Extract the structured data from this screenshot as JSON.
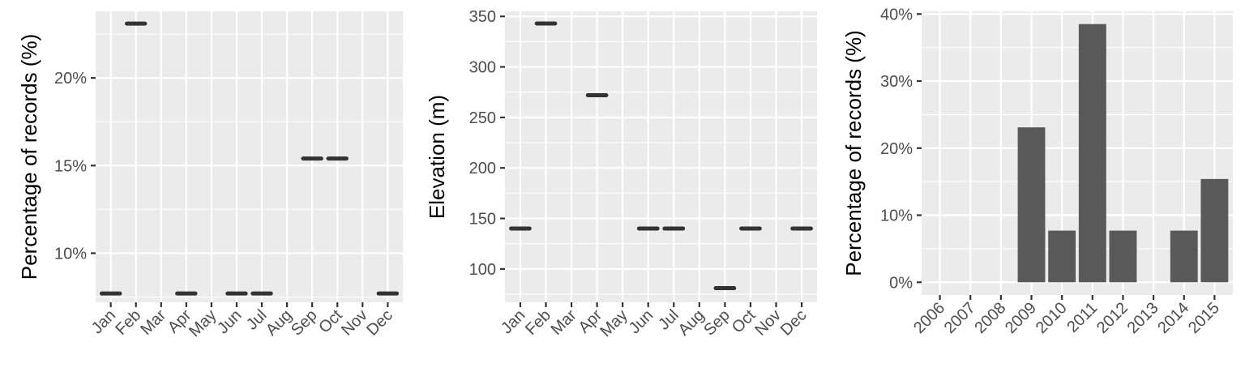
{
  "chart_data": [
    {
      "type": "scatter",
      "ylabel": "Percentage of records (%)",
      "categories": [
        "Jan",
        "Feb",
        "Mar",
        "Apr",
        "May",
        "Jun",
        "Jul",
        "Aug",
        "Sep",
        "Oct",
        "Nov",
        "Dec"
      ],
      "yticks": [
        10,
        15,
        20
      ],
      "ytick_labels": [
        "10%",
        "15%",
        "20%"
      ],
      "ylim": [
        7.2,
        23.8
      ],
      "points": [
        {
          "x": "Jan",
          "y": 7.7
        },
        {
          "x": "Feb",
          "y": 23.1
        },
        {
          "x": "Apr",
          "y": 7.7
        },
        {
          "x": "Jun",
          "y": 7.7
        },
        {
          "x": "Jul",
          "y": 7.7
        },
        {
          "x": "Sep",
          "y": 15.4
        },
        {
          "x": "Oct",
          "y": 15.4
        },
        {
          "x": "Dec",
          "y": 7.7
        }
      ],
      "grid": true
    },
    {
      "type": "scatter",
      "ylabel": "Elevation (m)",
      "categories": [
        "Jan",
        "Feb",
        "Mar",
        "Apr",
        "May",
        "Jun",
        "Jul",
        "Aug",
        "Sep",
        "Oct",
        "Nov",
        "Dec"
      ],
      "yticks": [
        100,
        150,
        200,
        250,
        300,
        350
      ],
      "ytick_labels": [
        "100",
        "150",
        "200",
        "250",
        "300",
        "350"
      ],
      "ylim": [
        67,
        355
      ],
      "points": [
        {
          "x": "Jan",
          "y": 140
        },
        {
          "x": "Feb",
          "y": 343
        },
        {
          "x": "Apr",
          "y": 272
        },
        {
          "x": "Jun",
          "y": 140
        },
        {
          "x": "Jul",
          "y": 140
        },
        {
          "x": "Sep",
          "y": 81
        },
        {
          "x": "Oct",
          "y": 140
        },
        {
          "x": "Dec",
          "y": 140
        }
      ],
      "grid": true
    },
    {
      "type": "bar",
      "ylabel": "Percentage of records (%)",
      "categories": [
        "2006",
        "2007",
        "2008",
        "2009",
        "2010",
        "2011",
        "2012",
        "2013",
        "2014",
        "2015"
      ],
      "values": [
        0,
        0,
        0,
        23.1,
        7.7,
        38.5,
        7.7,
        0,
        7.7,
        15.4
      ],
      "yticks": [
        0,
        10,
        20,
        30,
        40
      ],
      "ytick_labels": [
        "0%",
        "10%",
        "20%",
        "30%",
        "40%"
      ],
      "ylim": [
        -1.9,
        40.4
      ],
      "grid": true
    }
  ]
}
